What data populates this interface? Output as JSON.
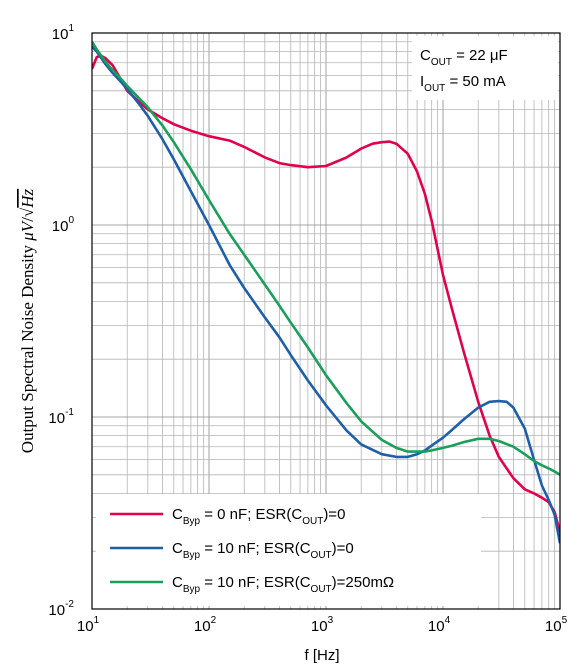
{
  "chart_data": {
    "type": "line",
    "xlabel": "f [Hz]",
    "ylabel": {
      "prefix": "Output Spectral Noise Density ",
      "unit_mu": "μ",
      "unit_v": "V",
      "slash": "/",
      "sqrt_arg": "Hz"
    },
    "x_scale": "log",
    "y_scale": "log",
    "xlim": [
      10,
      100000
    ],
    "ylim": [
      0.01,
      10
    ],
    "x_ticks": [
      {
        "value": 10,
        "base": "10",
        "exp": "1"
      },
      {
        "value": 100,
        "base": "10",
        "exp": "2"
      },
      {
        "value": 1000,
        "base": "10",
        "exp": "3"
      },
      {
        "value": 10000,
        "base": "10",
        "exp": "4"
      },
      {
        "value": 100000,
        "base": "10",
        "exp": "5"
      }
    ],
    "y_ticks": [
      {
        "value": 10,
        "base": "10",
        "exp": "1"
      },
      {
        "value": 1,
        "base": "10",
        "exp": "0"
      },
      {
        "value": 0.1,
        "base": "10",
        "exp": "-1"
      },
      {
        "value": 0.01,
        "base": "10",
        "exp": "-2"
      }
    ],
    "grid": true,
    "legend_position": "bottom-left",
    "annotation": {
      "line1": {
        "main": "C",
        "sub": "OUT",
        "rest": " = 22 μF"
      },
      "line2": {
        "main": "I",
        "sub": "OUT",
        "rest": " = 50 mA"
      }
    },
    "series": [
      {
        "color": "#e0004d",
        "legend": {
          "pre": "C",
          "sub": "Byp",
          "mid": " = 0 nF; ESR(C",
          "sub2": "OUT",
          "post": ")=0"
        },
        "x": [
          10,
          11,
          12,
          13,
          15,
          18,
          20,
          25,
          30,
          40,
          50,
          70,
          100,
          150,
          200,
          300,
          400,
          500,
          700,
          1000,
          1500,
          2000,
          2500,
          3000,
          3500,
          4000,
          5000,
          6000,
          7000,
          8000,
          10000,
          12000,
          15000,
          20000,
          25000,
          30000,
          40000,
          50000,
          60000,
          70000,
          80000,
          90000,
          100000
        ],
        "y": [
          6.5,
          7.5,
          7.6,
          7.4,
          6.8,
          5.6,
          5.0,
          4.4,
          4.0,
          3.6,
          3.35,
          3.1,
          2.9,
          2.75,
          2.55,
          2.25,
          2.1,
          2.05,
          2.0,
          2.03,
          2.25,
          2.5,
          2.65,
          2.7,
          2.72,
          2.65,
          2.35,
          1.9,
          1.45,
          1.05,
          0.55,
          0.36,
          0.22,
          0.12,
          0.08,
          0.062,
          0.048,
          0.042,
          0.04,
          0.038,
          0.036,
          0.032,
          0.025
        ]
      },
      {
        "color": "#1f5fa8",
        "legend": {
          "pre": "C",
          "sub": "Byp",
          "mid": " = 10 nF; ESR(C",
          "sub2": "OUT",
          "post": ")=0"
        },
        "x": [
          10,
          11,
          12,
          13,
          15,
          18,
          20,
          25,
          30,
          40,
          50,
          70,
          100,
          150,
          200,
          300,
          400,
          500,
          700,
          1000,
          1500,
          2000,
          3000,
          4000,
          5000,
          6000,
          7000,
          8000,
          10000,
          12000,
          15000,
          20000,
          25000,
          30000,
          35000,
          40000,
          50000,
          60000,
          70000,
          80000,
          90000,
          100000
        ],
        "y": [
          8.5,
          8.0,
          7.4,
          6.9,
          6.2,
          5.5,
          5.1,
          4.3,
          3.7,
          2.8,
          2.2,
          1.5,
          1.0,
          0.62,
          0.47,
          0.33,
          0.26,
          0.21,
          0.155,
          0.115,
          0.085,
          0.072,
          0.064,
          0.062,
          0.062,
          0.064,
          0.067,
          0.071,
          0.078,
          0.086,
          0.097,
          0.112,
          0.12,
          0.121,
          0.12,
          0.112,
          0.087,
          0.06,
          0.044,
          0.037,
          0.031,
          0.022
        ]
      },
      {
        "color": "#1a9e5a",
        "legend": {
          "pre": "C",
          "sub": "Byp",
          "mid": " = 10 nF; ESR(C",
          "sub2": "OUT",
          "post": ")=250mΩ"
        },
        "x": [
          10,
          11,
          12,
          13,
          15,
          18,
          20,
          25,
          30,
          40,
          50,
          70,
          100,
          150,
          200,
          300,
          400,
          500,
          700,
          1000,
          1500,
          2000,
          3000,
          4000,
          5000,
          6000,
          7000,
          8000,
          10000,
          12000,
          15000,
          20000,
          25000,
          30000,
          40000,
          50000,
          60000,
          70000,
          80000,
          90000,
          100000
        ],
        "y": [
          9.0,
          8.2,
          7.6,
          7.1,
          6.4,
          5.7,
          5.3,
          4.6,
          4.1,
          3.3,
          2.7,
          1.95,
          1.35,
          0.9,
          0.7,
          0.49,
          0.38,
          0.31,
          0.23,
          0.165,
          0.118,
          0.095,
          0.076,
          0.069,
          0.066,
          0.066,
          0.066,
          0.067,
          0.069,
          0.071,
          0.074,
          0.077,
          0.077,
          0.075,
          0.07,
          0.064,
          0.059,
          0.056,
          0.054,
          0.052,
          0.05
        ]
      }
    ]
  }
}
